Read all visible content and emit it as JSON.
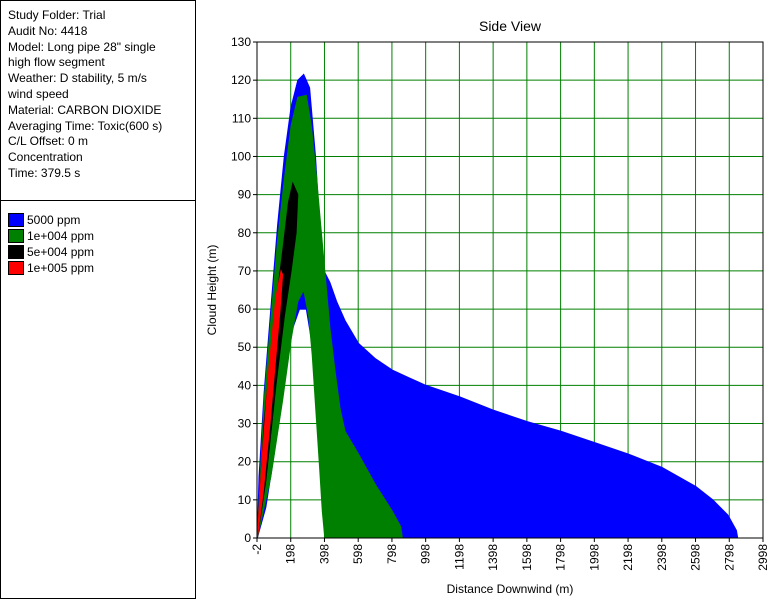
{
  "info": {
    "lines": [
      "Study Folder: Trial",
      "Audit No: 4418",
      "Model: Long pipe 28\" single",
      "high flow segment",
      "Weather: D stability, 5 m/s",
      "wind speed",
      "Material: CARBON DIOXIDE",
      "Averaging Time: Toxic(600 s)",
      "C/L Offset: 0 m",
      "Concentration",
      "Time: 379.5 s"
    ]
  },
  "legend": {
    "items": [
      {
        "label": "5000 ppm",
        "color": "#0000ff"
      },
      {
        "label": "1e+004 ppm",
        "color": "#008000"
      },
      {
        "label": "5e+004 ppm",
        "color": "#000000"
      },
      {
        "label": "1e+005 ppm",
        "color": "#ff0000"
      }
    ]
  },
  "chart_data": {
    "type": "area",
    "title": "Side View",
    "xlabel": "Distance Downwind (m)",
    "ylabel": "Cloud Height (m)",
    "xlim": [
      -2,
      2998
    ],
    "ylim": [
      0,
      130
    ],
    "grid": true,
    "x_ticks": [
      "-2",
      "198",
      "398",
      "598",
      "798",
      "998",
      "1198",
      "1398",
      "1598",
      "1798",
      "1998",
      "2198",
      "2398",
      "2598",
      "2798",
      "2998"
    ],
    "y_ticks": [
      "0",
      "10",
      "20",
      "30",
      "40",
      "50",
      "60",
      "70",
      "80",
      "90",
      "100",
      "110",
      "120",
      "130"
    ],
    "series": [
      {
        "name": "5000 ppm",
        "color": "#0000ff",
        "outline": [
          [
            0,
            0
          ],
          [
            10,
            16
          ],
          [
            40,
            38
          ],
          [
            80,
            60
          ],
          [
            120,
            82
          ],
          [
            160,
            100
          ],
          [
            200,
            113
          ],
          [
            240,
            120
          ],
          [
            275,
            121.5
          ],
          [
            310,
            118
          ],
          [
            345,
            100
          ],
          [
            375,
            78
          ],
          [
            395,
            70
          ],
          [
            430,
            67
          ],
          [
            470,
            62
          ],
          [
            520,
            57
          ],
          [
            600,
            51
          ],
          [
            700,
            47
          ],
          [
            800,
            44
          ],
          [
            900,
            42
          ],
          [
            1000,
            40
          ],
          [
            1200,
            37
          ],
          [
            1400,
            33.5
          ],
          [
            1600,
            30.5
          ],
          [
            1800,
            28
          ],
          [
            2000,
            25
          ],
          [
            2200,
            22
          ],
          [
            2400,
            18.5
          ],
          [
            2600,
            13.5
          ],
          [
            2700,
            10
          ],
          [
            2790,
            6
          ],
          [
            2840,
            2
          ],
          [
            2848,
            0
          ],
          [
            410,
            0
          ],
          [
            400,
            2
          ],
          [
            380,
            16
          ],
          [
            355,
            34
          ],
          [
            320,
            52
          ],
          [
            290,
            60
          ],
          [
            250,
            60
          ],
          [
            210,
            55
          ],
          [
            150,
            40
          ],
          [
            100,
            22
          ],
          [
            50,
            8
          ],
          [
            0,
            0
          ]
        ]
      },
      {
        "name": "1e+004 ppm",
        "color": "#008000",
        "outline": [
          [
            0,
            0
          ],
          [
            40,
            36
          ],
          [
            80,
            57
          ],
          [
            120,
            78
          ],
          [
            160,
            94
          ],
          [
            200,
            108
          ],
          [
            240,
            115.5
          ],
          [
            290,
            116
          ],
          [
            320,
            108
          ],
          [
            350,
            95
          ],
          [
            380,
            80
          ],
          [
            410,
            65
          ],
          [
            430,
            55
          ],
          [
            460,
            44
          ],
          [
            490,
            34
          ],
          [
            520,
            28
          ],
          [
            600,
            22
          ],
          [
            700,
            14
          ],
          [
            800,
            7
          ],
          [
            850,
            3
          ],
          [
            860,
            0
          ],
          [
            400,
            0
          ],
          [
            385,
            7
          ],
          [
            370,
            18
          ],
          [
            355,
            28
          ],
          [
            340,
            38
          ],
          [
            325,
            48
          ],
          [
            305,
            58
          ],
          [
            275,
            65
          ],
          [
            240,
            62
          ],
          [
            200,
            52
          ],
          [
            150,
            36
          ],
          [
            80,
            16
          ],
          [
            0,
            0
          ]
        ]
      },
      {
        "name": "5e+004 ppm",
        "color": "#000000",
        "outline": [
          [
            0,
            0
          ],
          [
            40,
            30
          ],
          [
            100,
            58
          ],
          [
            150,
            75
          ],
          [
            185,
            88
          ],
          [
            210,
            93
          ],
          [
            240,
            90
          ],
          [
            230,
            80
          ],
          [
            200,
            70
          ],
          [
            160,
            58
          ],
          [
            110,
            40
          ],
          [
            50,
            15
          ],
          [
            0,
            0
          ]
        ]
      },
      {
        "name": "1e+005 ppm",
        "color": "#ff0000",
        "outline": [
          [
            0,
            0
          ],
          [
            30,
            22
          ],
          [
            70,
            45
          ],
          [
            110,
            63
          ],
          [
            140,
            70
          ],
          [
            150,
            69
          ],
          [
            135,
            60
          ],
          [
            105,
            45
          ],
          [
            75,
            30
          ],
          [
            35,
            12
          ],
          [
            0,
            0
          ]
        ]
      }
    ]
  }
}
